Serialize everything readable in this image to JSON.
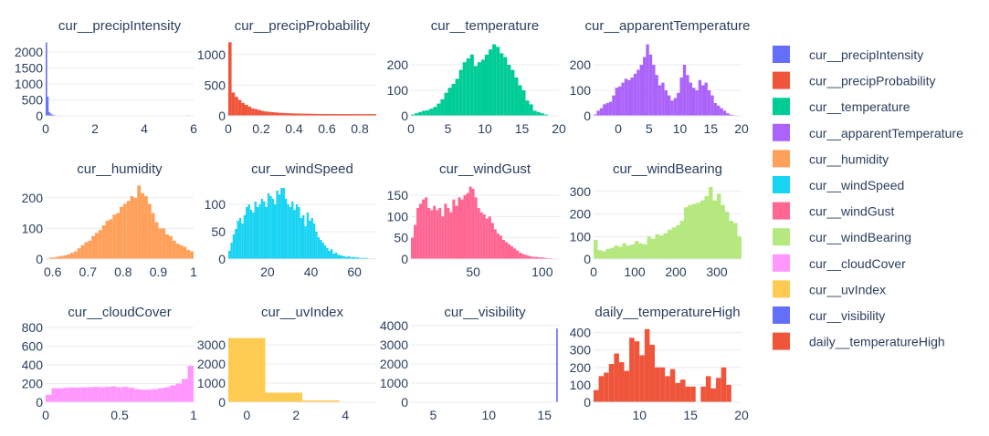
{
  "chart_data": [
    {
      "type": "bar",
      "title": "cur__precipIntensity",
      "color": "#636efa",
      "xlim": [
        0,
        6
      ],
      "ylim": [
        0,
        2400
      ],
      "xticks": [
        0,
        2,
        4,
        6
      ],
      "yticks": [
        0,
        500,
        1000,
        1500,
        2000
      ],
      "bin_start": 0,
      "bin_width": 0.06,
      "values": [
        2300,
        600,
        120,
        70,
        40,
        30,
        20,
        15,
        12,
        10,
        10,
        8,
        8,
        6,
        6,
        5,
        5,
        4,
        4,
        4,
        4,
        4,
        3,
        3,
        3,
        3,
        3,
        3,
        3,
        3,
        3,
        3,
        3,
        2,
        3,
        3,
        3,
        2,
        2,
        3,
        3,
        2,
        3,
        2,
        2,
        3,
        3,
        2,
        2,
        2,
        2,
        2,
        2,
        2,
        2,
        3,
        3,
        3,
        3,
        2,
        3,
        3,
        3,
        2,
        2,
        2,
        2,
        2,
        2,
        2,
        2,
        2,
        2,
        2,
        2,
        2,
        2,
        2,
        2,
        2,
        2,
        2,
        2,
        2,
        2,
        2,
        2,
        2,
        2,
        3,
        2,
        2,
        2,
        2,
        2,
        2,
        20,
        15,
        12,
        10
      ]
    },
    {
      "type": "bar",
      "title": "cur__precipProbability",
      "color": "#EF553B",
      "xlim": [
        0,
        0.9
      ],
      "ylim": [
        0,
        1250
      ],
      "xticks": [
        0,
        0.2,
        0.4,
        0.6,
        0.8
      ],
      "yticks": [
        0,
        500,
        1000
      ],
      "bin_start": 0,
      "bin_width": 0.02,
      "values": [
        1200,
        380,
        310,
        260,
        210,
        180,
        150,
        120,
        110,
        95,
        80,
        70,
        65,
        60,
        55,
        50,
        48,
        45,
        42,
        40,
        38,
        38,
        36,
        35,
        34,
        32,
        32,
        31,
        30,
        30,
        30,
        30,
        30,
        29,
        29,
        29,
        29,
        29,
        28,
        28,
        28,
        28,
        28,
        28,
        28
      ]
    },
    {
      "type": "bar",
      "title": "cur__temperature",
      "color": "#00cc96",
      "xlim": [
        0,
        20
      ],
      "ylim": [
        0,
        300
      ],
      "xticks": [
        0,
        5,
        10,
        15,
        20
      ],
      "yticks": [
        0,
        100,
        200
      ],
      "bin_start": 0,
      "bin_width": 0.5,
      "values": [
        5,
        10,
        15,
        20,
        22,
        28,
        35,
        48,
        65,
        90,
        110,
        125,
        145,
        180,
        210,
        225,
        240,
        195,
        210,
        220,
        240,
        260,
        280,
        270,
        245,
        230,
        200,
        180,
        150,
        120,
        100,
        60,
        45,
        20,
        15,
        10,
        5,
        2,
        1,
        1
      ]
    },
    {
      "type": "bar",
      "title": "cur__apparentTemperature",
      "color": "#ab63fa",
      "xlim": [
        -4,
        20
      ],
      "ylim": [
        0,
        300
      ],
      "xticks": [
        0,
        5,
        10,
        15,
        20
      ],
      "yticks": [
        0,
        100,
        200
      ],
      "bin_start": -4,
      "bin_width": 0.5,
      "values": [
        5,
        20,
        30,
        45,
        50,
        55,
        80,
        110,
        115,
        130,
        145,
        140,
        150,
        165,
        180,
        200,
        230,
        280,
        240,
        200,
        160,
        120,
        130,
        100,
        80,
        60,
        70,
        90,
        150,
        200,
        160,
        130,
        110,
        100,
        140,
        120,
        130,
        100,
        80,
        50,
        40,
        30,
        20,
        10,
        5,
        3,
        2,
        1
      ]
    },
    {
      "type": "bar",
      "title": "cur__humidity",
      "color": "#FFA15A",
      "xlim": [
        0.58,
        1.0
      ],
      "ylim": [
        0,
        250
      ],
      "xticks": [
        0.6,
        0.7,
        0.8,
        0.9,
        1
      ],
      "yticks": [
        0,
        100,
        200
      ],
      "bin_start": 0.58,
      "bin_width": 0.01,
      "values": [
        2,
        5,
        5,
        8,
        10,
        12,
        15,
        20,
        25,
        35,
        45,
        55,
        60,
        75,
        85,
        95,
        110,
        125,
        130,
        145,
        150,
        170,
        180,
        190,
        205,
        200,
        240,
        215,
        205,
        180,
        150,
        120,
        100,
        100,
        80,
        75,
        60,
        50,
        45,
        40,
        30,
        25
      ]
    },
    {
      "type": "bar",
      "title": "cur__windSpeed",
      "color": "#19d3f3",
      "xlim": [
        2,
        70
      ],
      "ylim": [
        0,
        140
      ],
      "xticks": [
        20,
        40,
        60
      ],
      "yticks": [
        0,
        50,
        100
      ],
      "bin_start": 2,
      "bin_width": 1,
      "values": [
        15,
        30,
        45,
        55,
        70,
        75,
        65,
        80,
        95,
        100,
        90,
        85,
        105,
        95,
        100,
        110,
        105,
        95,
        120,
        115,
        110,
        100,
        125,
        118,
        130,
        130,
        110,
        100,
        95,
        105,
        90,
        100,
        95,
        75,
        80,
        60,
        85,
        70,
        75,
        65,
        50,
        40,
        35,
        30,
        25,
        20,
        15,
        18,
        10,
        12,
        8,
        7,
        6,
        5,
        4,
        5,
        3,
        4,
        3,
        3,
        2,
        2,
        2,
        2,
        1,
        1,
        1,
        1
      ]
    },
    {
      "type": "bar",
      "title": "cur__windGust",
      "color": "#FF6692",
      "xlim": [
        5,
        112
      ],
      "ylim": [
        0,
        180
      ],
      "xticks": [
        50,
        100
      ],
      "yticks": [
        0,
        50,
        100,
        150
      ],
      "bin_start": 5,
      "bin_width": 2,
      "values": [
        50,
        80,
        120,
        130,
        140,
        145,
        120,
        115,
        125,
        115,
        120,
        100,
        130,
        120,
        110,
        140,
        125,
        145,
        140,
        150,
        155,
        170,
        165,
        145,
        120,
        110,
        105,
        95,
        100,
        85,
        70,
        60,
        55,
        45,
        40,
        35,
        30,
        25,
        20,
        15,
        12,
        10,
        8,
        6,
        5,
        5,
        4,
        4,
        3,
        2,
        2,
        1,
        1
      ]
    },
    {
      "type": "bar",
      "title": "cur__windBearing",
      "color": "#B6E880",
      "xlim": [
        0,
        360
      ],
      "ylim": [
        0,
        340
      ],
      "xticks": [
        0,
        100,
        200,
        300
      ],
      "yticks": [
        0,
        100,
        200,
        300
      ],
      "bin_start": 0,
      "bin_width": 10,
      "values": [
        85,
        40,
        35,
        45,
        50,
        60,
        55,
        70,
        60,
        65,
        80,
        70,
        65,
        100,
        90,
        110,
        105,
        115,
        130,
        140,
        150,
        170,
        230,
        240,
        245,
        250,
        260,
        280,
        320,
        260,
        290,
        240,
        210,
        170,
        160,
        100
      ]
    },
    {
      "type": "bar",
      "title": "cur__cloudCover",
      "color": "#FF97FF",
      "xlim": [
        0,
        1
      ],
      "ylim": [
        0,
        820
      ],
      "xticks": [
        0,
        0.5,
        1
      ],
      "yticks": [
        0,
        200,
        400,
        600,
        800
      ],
      "bin_start": 0,
      "bin_width": 0.04,
      "values": [
        80,
        150,
        150,
        155,
        160,
        158,
        160,
        162,
        165,
        160,
        165,
        170,
        160,
        165,
        155,
        140,
        135,
        135,
        140,
        150,
        160,
        180,
        200,
        250,
        390,
        760
      ]
    },
    {
      "type": "bar",
      "title": "cur__uvIndex",
      "color": "#FECB52",
      "xlim": [
        -0.75,
        5.25
      ],
      "ylim": [
        0,
        4000
      ],
      "xticks": [
        0,
        2,
        4
      ],
      "yticks": [
        0,
        1000,
        2000,
        3000
      ],
      "bin_start": -0.75,
      "bin_width": 1.5,
      "values": [
        3350,
        500,
        100,
        25
      ]
    },
    {
      "type": "bar",
      "title": "cur__visibility",
      "color": "#636efa",
      "xlim": [
        3,
        16.3
      ],
      "ylim": [
        0,
        4000
      ],
      "xticks": [
        5,
        10,
        15
      ],
      "yticks": [
        0,
        1000,
        2000,
        3000,
        4000
      ],
      "bin_start": 3,
      "bin_width": 0.1333,
      "values": [
        5,
        15,
        5,
        10,
        5,
        15,
        5,
        5,
        20,
        5,
        10,
        5,
        10,
        5,
        10,
        5,
        10,
        5,
        5,
        5,
        10,
        5,
        5,
        5,
        5,
        5,
        10,
        10,
        5,
        5,
        5,
        5,
        10,
        5,
        5,
        5,
        10,
        5,
        5,
        5,
        10,
        5,
        10,
        5,
        10,
        10,
        5,
        10,
        5,
        10,
        10,
        5,
        10,
        10,
        5,
        5,
        10,
        5,
        10,
        10,
        10,
        10,
        10,
        10,
        10,
        10,
        10,
        10,
        10,
        10,
        10,
        10,
        10,
        10,
        10,
        10,
        10,
        10,
        10,
        10,
        10,
        10,
        10,
        10,
        10,
        10,
        10,
        10,
        10,
        10,
        10,
        10,
        10,
        10,
        10,
        10,
        10,
        10,
        3850
      ]
    },
    {
      "type": "bar",
      "title": "daily__temperatureHigh",
      "color": "#EF553B",
      "xlim": [
        5.5,
        20
      ],
      "ylim": [
        0,
        440
      ],
      "xticks": [
        10,
        15,
        20
      ],
      "yticks": [
        0,
        100,
        200,
        300,
        400
      ],
      "bin_start": 5.5,
      "bin_width": 0.5,
      "values": [
        70,
        150,
        170,
        220,
        280,
        230,
        180,
        370,
        350,
        270,
        420,
        330,
        200,
        200,
        150,
        190,
        110,
        130,
        90,
        90,
        0,
        90,
        150,
        80,
        140,
        200,
        100,
        0,
        0,
        90,
        50
      ]
    }
  ],
  "legend": [
    {
      "label": "cur__precipIntensity",
      "color": "#636efa"
    },
    {
      "label": "cur__precipProbability",
      "color": "#EF553B"
    },
    {
      "label": "cur__temperature",
      "color": "#00cc96"
    },
    {
      "label": "cur__apparentTemperature",
      "color": "#ab63fa"
    },
    {
      "label": "cur__humidity",
      "color": "#FFA15A"
    },
    {
      "label": "cur__windSpeed",
      "color": "#19d3f3"
    },
    {
      "label": "cur__windGust",
      "color": "#FF6692"
    },
    {
      "label": "cur__windBearing",
      "color": "#B6E880"
    },
    {
      "label": "cur__cloudCover",
      "color": "#FF97FF"
    },
    {
      "label": "cur__uvIndex",
      "color": "#FECB52"
    },
    {
      "label": "cur__visibility",
      "color": "#636efa"
    },
    {
      "label": "daily__temperatureHigh",
      "color": "#EF553B"
    }
  ]
}
